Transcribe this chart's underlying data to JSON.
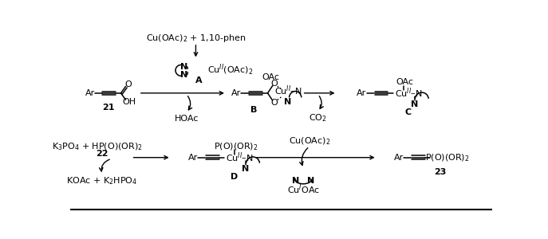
{
  "figsize": [
    6.87,
    3.0
  ],
  "dpi": 100,
  "top_reagent": "Cu(OAc)$_2$ + 1,10-phen",
  "mol21_num": "21",
  "reagentA_N1": "N",
  "reagentA_N2": "N",
  "reagentA_formula": "Cu$^{II}$(OAc)$_2$",
  "reagentA_label": "A",
  "byproductA": "HOAc",
  "molB_Ar": "Ar",
  "molB_O1": "O",
  "molB_O2": "O",
  "molB_OAc": "OAc",
  "molB_CuN": "Cu$^{II}$–N",
  "molB_N": "N",
  "molB_label": "B",
  "co2": "CO$_2$",
  "molC_Ar": "Ar",
  "molC_OAc": "OAc",
  "molC_CuN": "Cu$^{II}$–N",
  "molC_N": "N",
  "molC_label": "C",
  "bot_reagent1": "K$_3$PO$_4$ + HP(O)(OR)$_2$",
  "bot_num22": "22",
  "bot_byproduct": "KOAc + K$_2$HPO$_4$",
  "molD_Ar": "Ar",
  "molD_P": "P(O)(OR)$_2$",
  "molD_CuN": "Cu$^{II}$–N",
  "molD_N": "N",
  "molD_label": "D",
  "bot_Cu": "Cu(OAc)$_2$",
  "bot_CuI_N1": "N",
  "bot_CuI_N2": "N",
  "bot_CuI": "Cu$^{I}$OAc",
  "mol23_Ar": "Ar",
  "mol23_P": "P(O)(OR)$_2$",
  "mol23_num": "23"
}
